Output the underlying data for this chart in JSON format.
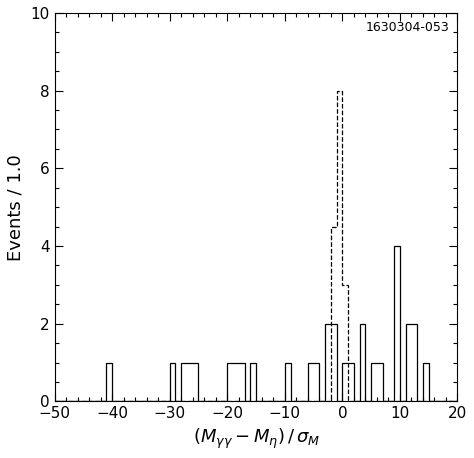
{
  "xlim": [
    -50,
    20
  ],
  "ylim": [
    0,
    10
  ],
  "xlabel": "(Mγγ-Mη ) / σₕ",
  "ylabel": "Events / 1.0",
  "annotation": "1630304-053",
  "xticks": [
    -50,
    -40,
    -30,
    -20,
    -10,
    0,
    10,
    20
  ],
  "yticks": [
    0,
    2,
    4,
    6,
    8,
    10
  ],
  "bin_width": 1,
  "solid_bins_centers": [
    -41,
    -30,
    -28,
    -27,
    -26,
    -20,
    -19,
    -18,
    -16,
    -10,
    -6,
    -5,
    -3,
    -2,
    0,
    1,
    3,
    5,
    6,
    9,
    11,
    12,
    14
  ],
  "solid_bins_values": [
    1,
    1,
    1,
    1,
    1,
    1,
    1,
    1,
    1,
    1,
    1,
    1,
    2,
    2,
    1,
    1,
    2,
    1,
    1,
    4,
    2,
    2,
    1
  ],
  "dashed_bins_centers": [
    -2,
    -1,
    0
  ],
  "dashed_bins_values": [
    4.5,
    8,
    3
  ],
  "solid_color": "#000000",
  "dashed_color": "#000000",
  "background_color": "#ffffff",
  "label_fontsize": 13,
  "tick_fontsize": 11,
  "annot_fontsize": 9
}
